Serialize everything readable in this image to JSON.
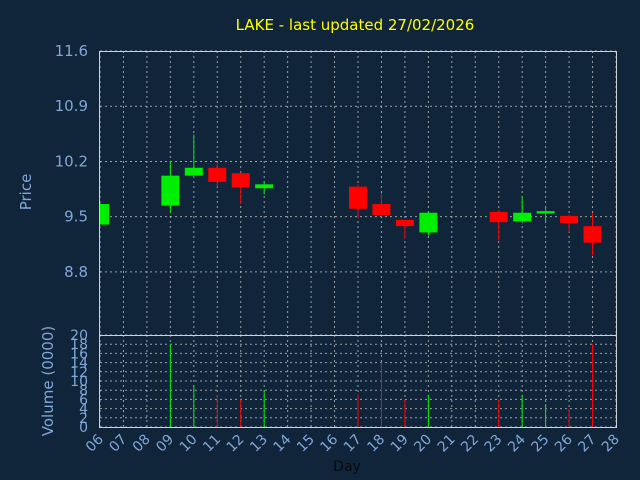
{
  "chart_data": {
    "type": "candlestick",
    "title": "LAKE - last updated 27/02/2026",
    "xlabel": "Day",
    "ylabel_price": "Price",
    "ylabel_volume": "Volume (0000)",
    "x_ticks": [
      "06",
      "07",
      "08",
      "09",
      "10",
      "11",
      "12",
      "13",
      "14",
      "15",
      "16",
      "17",
      "18",
      "19",
      "20",
      "21",
      "22",
      "23",
      "24",
      "25",
      "26",
      "27",
      "28"
    ],
    "price_ticks": [
      8.8,
      9.5,
      10.2,
      10.9,
      11.6
    ],
    "price_ylim": [
      8.0,
      11.6
    ],
    "volume_ticks": [
      0,
      2,
      4,
      6,
      8,
      10,
      12,
      14,
      16,
      18,
      20
    ],
    "volume_ylim": [
      0,
      20
    ],
    "up_color": "#00ee00",
    "down_color": "#ff0000",
    "grid": true,
    "candles": [
      {
        "day": "06",
        "open": 9.4,
        "high": 9.68,
        "low": 9.4,
        "close": 9.66,
        "volume": 0
      },
      {
        "day": "09",
        "open": 9.64,
        "high": 10.2,
        "low": 9.55,
        "close": 10.02,
        "volume": 18
      },
      {
        "day": "10",
        "open": 10.02,
        "high": 10.54,
        "low": 10.02,
        "close": 10.12,
        "volume": 9
      },
      {
        "day": "11",
        "open": 10.12,
        "high": 10.17,
        "low": 9.88,
        "close": 9.94,
        "volume": 7
      },
      {
        "day": "12",
        "open": 10.05,
        "high": 10.06,
        "low": 9.66,
        "close": 9.87,
        "volume": 6
      },
      {
        "day": "13",
        "open": 9.86,
        "high": 9.94,
        "low": 9.78,
        "close": 9.91,
        "volume": 8
      },
      {
        "day": "17",
        "open": 9.88,
        "high": 9.91,
        "low": 9.48,
        "close": 9.6,
        "volume": 7
      },
      {
        "day": "18",
        "open": 9.66,
        "high": 9.8,
        "low": 9.5,
        "close": 9.52,
        "volume": 14
      },
      {
        "day": "19",
        "open": 9.46,
        "high": 9.46,
        "low": 9.22,
        "close": 9.38,
        "volume": 6
      },
      {
        "day": "20",
        "open": 9.3,
        "high": 9.56,
        "low": 9.26,
        "close": 9.55,
        "volume": 7
      },
      {
        "day": "23",
        "open": 9.56,
        "high": 9.58,
        "low": 9.2,
        "close": 9.43,
        "volume": 6
      },
      {
        "day": "24",
        "open": 9.44,
        "high": 9.76,
        "low": 9.44,
        "close": 9.55,
        "volume": 7
      },
      {
        "day": "25",
        "open": 9.54,
        "high": 9.62,
        "low": 9.44,
        "close": 9.57,
        "volume": 5
      },
      {
        "day": "26",
        "open": 9.51,
        "high": 9.52,
        "low": 9.3,
        "close": 9.42,
        "volume": 4
      },
      {
        "day": "27",
        "open": 9.38,
        "high": 9.55,
        "low": 9.01,
        "close": 9.17,
        "volume": 18
      }
    ]
  }
}
